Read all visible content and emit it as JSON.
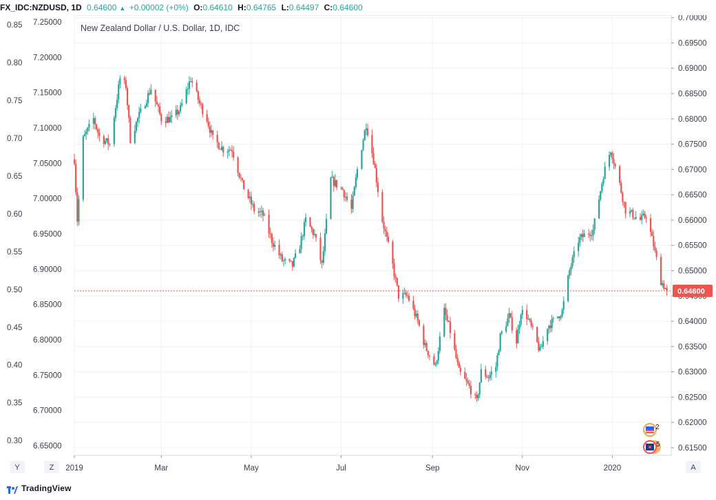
{
  "header": {
    "symbol": "FX_IDC:NZDUSD, 1D",
    "last": "0.64600",
    "change": "+0.00002 (+0%)",
    "open_label": "O:",
    "open": "0.64610",
    "high_label": "H:",
    "high": "0.64765",
    "low_label": "L:",
    "low": "0.64497",
    "close_label": "C:",
    "close": "0.64600",
    "up_arrow": "▲"
  },
  "footer": {
    "brand": "TradingView"
  },
  "colors": {
    "up": "#26a69a",
    "down": "#ef5350",
    "grid": "#eef0f3",
    "axis_text": "#3a3e4a",
    "price_line": "#ef5350",
    "price_badge": "#ef5350"
  },
  "chart_data": {
    "type": "candlestick",
    "title": "New Zealand Dollar / U.S. Dollar, 1D, IDC",
    "right_axis": {
      "ticks": [
        "0.70000",
        "0.69500",
        "0.69000",
        "0.68500",
        "0.68000",
        "0.67500",
        "0.67000",
        "0.66500",
        "0.66000",
        "0.65500",
        "0.65000",
        "0.64500",
        "0.64000",
        "0.63500",
        "0.63000",
        "0.62500",
        "0.62000",
        "0.61500"
      ],
      "range": [
        0.6135,
        0.7005
      ]
    },
    "left_axis_1": {
      "ticks": [
        "0.85",
        "0.80",
        "0.75",
        "0.70",
        "0.65",
        "0.60",
        "0.55",
        "0.50",
        "0.45",
        "0.40",
        "0.35",
        "0.30"
      ],
      "range": [
        0.2806,
        0.8628
      ]
    },
    "left_axis_2": {
      "ticks": [
        "7.25000",
        "7.20000",
        "7.15000",
        "7.10000",
        "7.05000",
        "7.00000",
        "6.95000",
        "6.90000",
        "6.85000",
        "6.80000",
        "6.75000",
        "6.70000",
        "6.65000"
      ],
      "range": [
        6.6364,
        7.2597
      ]
    },
    "x_labels": [
      {
        "label": "2019",
        "date": "2019-01-01"
      },
      {
        "label": "Mar",
        "date": "2019-03-01"
      },
      {
        "label": "May",
        "date": "2019-05-01"
      },
      {
        "label": "Jul",
        "date": "2019-07-01"
      },
      {
        "label": "Sep",
        "date": "2019-09-01"
      },
      {
        "label": "Nov",
        "date": "2019-11-01"
      },
      {
        "label": "2020",
        "date": "2020-01-01"
      }
    ],
    "x_range": [
      "2019-01-01",
      "2020-02-10"
    ],
    "last_price": 0.646,
    "last_price_label": "0.64600",
    "anchors": [
      [
        "2019-01-01",
        0.672
      ],
      [
        "2019-01-03",
        0.66
      ],
      [
        "2019-01-07",
        0.676
      ],
      [
        "2019-01-14",
        0.68
      ],
      [
        "2019-01-18",
        0.6765
      ],
      [
        "2019-01-25",
        0.675
      ],
      [
        "2019-02-01",
        0.688
      ],
      [
        "2019-02-05",
        0.6865
      ],
      [
        "2019-02-08",
        0.676
      ],
      [
        "2019-02-13",
        0.68
      ],
      [
        "2019-02-22",
        0.686
      ],
      [
        "2019-03-01",
        0.68
      ],
      [
        "2019-03-08",
        0.68
      ],
      [
        "2019-03-14",
        0.682
      ],
      [
        "2019-03-21",
        0.688
      ],
      [
        "2019-03-27",
        0.683
      ],
      [
        "2019-04-01",
        0.68
      ],
      [
        "2019-04-05",
        0.676
      ],
      [
        "2019-04-12",
        0.674
      ],
      [
        "2019-04-18",
        0.674
      ],
      [
        "2019-04-25",
        0.667
      ],
      [
        "2019-05-03",
        0.662
      ],
      [
        "2019-05-09",
        0.661
      ],
      [
        "2019-05-15",
        0.656
      ],
      [
        "2019-05-22",
        0.652
      ],
      [
        "2019-05-29",
        0.651
      ],
      [
        "2019-06-03",
        0.655
      ],
      [
        "2019-06-07",
        0.66
      ],
      [
        "2019-06-13",
        0.657
      ],
      [
        "2019-06-18",
        0.651
      ],
      [
        "2019-06-24",
        0.668
      ],
      [
        "2019-07-02",
        0.666
      ],
      [
        "2019-07-08",
        0.662
      ],
      [
        "2019-07-12",
        0.67
      ],
      [
        "2019-07-18",
        0.679
      ],
      [
        "2019-07-23",
        0.672
      ],
      [
        "2019-07-29",
        0.66
      ],
      [
        "2019-08-05",
        0.651
      ],
      [
        "2019-08-09",
        0.645
      ],
      [
        "2019-08-15",
        0.645
      ],
      [
        "2019-08-22",
        0.64
      ],
      [
        "2019-08-27",
        0.635
      ],
      [
        "2019-09-03",
        0.631
      ],
      [
        "2019-09-09",
        0.642
      ],
      [
        "2019-09-13",
        0.638
      ],
      [
        "2019-09-19",
        0.63
      ],
      [
        "2019-09-26",
        0.627
      ],
      [
        "2019-10-01",
        0.624
      ],
      [
        "2019-10-04",
        0.63
      ],
      [
        "2019-10-09",
        0.629
      ],
      [
        "2019-10-14",
        0.631
      ],
      [
        "2019-10-17",
        0.637
      ],
      [
        "2019-10-23",
        0.641
      ],
      [
        "2019-10-28",
        0.636
      ],
      [
        "2019-10-31",
        0.642
      ],
      [
        "2019-11-04",
        0.641
      ],
      [
        "2019-11-08",
        0.638
      ],
      [
        "2019-11-13",
        0.634
      ],
      [
        "2019-11-18",
        0.639
      ],
      [
        "2019-11-22",
        0.64
      ],
      [
        "2019-11-28",
        0.642
      ],
      [
        "2019-12-03",
        0.65
      ],
      [
        "2019-12-09",
        0.656
      ],
      [
        "2019-12-13",
        0.657
      ],
      [
        "2019-12-19",
        0.658
      ],
      [
        "2019-12-26",
        0.669
      ],
      [
        "2019-12-31",
        0.674
      ],
      [
        "2020-01-06",
        0.667
      ],
      [
        "2020-01-10",
        0.662
      ],
      [
        "2020-01-15",
        0.661
      ],
      [
        "2020-01-20",
        0.66
      ],
      [
        "2020-01-24",
        0.661
      ],
      [
        "2020-01-29",
        0.655
      ],
      [
        "2020-02-03",
        0.648
      ],
      [
        "2020-02-07",
        0.646
      ]
    ]
  },
  "axis_buttons": {
    "y": "Y",
    "z": "Z",
    "a": "A"
  },
  "events": [
    {
      "badge": "2"
    },
    {
      "badge": "5"
    }
  ]
}
